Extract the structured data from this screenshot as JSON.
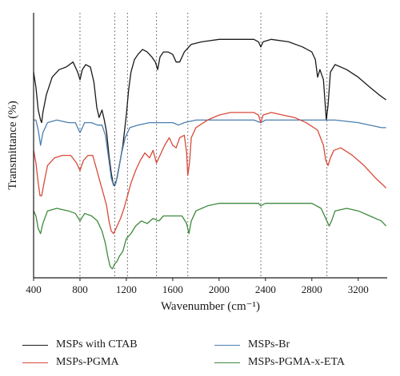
{
  "chart_data": {
    "type": "line",
    "title": "",
    "xlabel": "Wavenumber (cm⁻¹)",
    "ylabel": "Transmittance (%)",
    "xlim": [
      400,
      3450
    ],
    "xticks": [
      400,
      800,
      1200,
      1600,
      2000,
      2400,
      2800,
      3200
    ],
    "xtick_labels": [
      "400",
      "800",
      "1200",
      "1600",
      "2000",
      "2400",
      "2800",
      "3200"
    ],
    "reference_lines": [
      800,
      1100,
      1210,
      1460,
      1730,
      2360,
      2930
    ],
    "ylim": [
      0,
      100
    ],
    "y_ticks_shown": false,
    "legend_position": "bottom",
    "series": [
      {
        "name": "MSPs with CTAB",
        "color": "#1a1a1a",
        "points": [
          [
            400,
            79
          ],
          [
            420,
            73
          ],
          [
            440,
            64
          ],
          [
            460,
            60
          ],
          [
            470,
            59
          ],
          [
            480,
            63
          ],
          [
            510,
            70
          ],
          [
            560,
            77
          ],
          [
            620,
            80
          ],
          [
            680,
            81
          ],
          [
            740,
            83
          ],
          [
            780,
            79
          ],
          [
            800,
            76
          ],
          [
            820,
            80
          ],
          [
            850,
            82
          ],
          [
            890,
            81
          ],
          [
            920,
            75
          ],
          [
            945,
            65
          ],
          [
            965,
            61
          ],
          [
            990,
            64
          ],
          [
            1010,
            60
          ],
          [
            1030,
            55
          ],
          [
            1050,
            46
          ],
          [
            1070,
            39
          ],
          [
            1085,
            35
          ],
          [
            1100,
            34
          ],
          [
            1120,
            37
          ],
          [
            1140,
            42
          ],
          [
            1170,
            50
          ],
          [
            1200,
            62
          ],
          [
            1220,
            72
          ],
          [
            1240,
            79
          ],
          [
            1270,
            84
          ],
          [
            1300,
            86
          ],
          [
            1340,
            88
          ],
          [
            1380,
            87
          ],
          [
            1420,
            85
          ],
          [
            1450,
            83
          ],
          [
            1470,
            80
          ],
          [
            1490,
            85
          ],
          [
            1520,
            87
          ],
          [
            1560,
            87
          ],
          [
            1600,
            86
          ],
          [
            1630,
            83
          ],
          [
            1660,
            83
          ],
          [
            1700,
            87
          ],
          [
            1760,
            90
          ],
          [
            1850,
            91
          ],
          [
            2000,
            92
          ],
          [
            2150,
            92
          ],
          [
            2300,
            92
          ],
          [
            2340,
            91
          ],
          [
            2360,
            89
          ],
          [
            2380,
            91
          ],
          [
            2450,
            92
          ],
          [
            2600,
            91
          ],
          [
            2720,
            89
          ],
          [
            2800,
            87
          ],
          [
            2830,
            84
          ],
          [
            2850,
            77
          ],
          [
            2870,
            80
          ],
          [
            2900,
            76
          ],
          [
            2925,
            60
          ],
          [
            2940,
            66
          ],
          [
            2960,
            79
          ],
          [
            3000,
            82
          ],
          [
            3100,
            80
          ],
          [
            3200,
            77
          ],
          [
            3300,
            73
          ],
          [
            3380,
            70
          ],
          [
            3440,
            68
          ]
        ]
      },
      {
        "name": "MSPs-Br",
        "color": "#4a7fb0",
        "points": [
          [
            400,
            60
          ],
          [
            420,
            60
          ],
          [
            440,
            56
          ],
          [
            460,
            50
          ],
          [
            480,
            55
          ],
          [
            520,
            59
          ],
          [
            600,
            60
          ],
          [
            700,
            59
          ],
          [
            760,
            59
          ],
          [
            800,
            55
          ],
          [
            840,
            59
          ],
          [
            900,
            59
          ],
          [
            950,
            58
          ],
          [
            990,
            58
          ],
          [
            1020,
            54
          ],
          [
            1050,
            44
          ],
          [
            1070,
            37
          ],
          [
            1090,
            34
          ],
          [
            1110,
            35
          ],
          [
            1130,
            40
          ],
          [
            1160,
            47
          ],
          [
            1190,
            53
          ],
          [
            1230,
            57
          ],
          [
            1300,
            58
          ],
          [
            1400,
            59
          ],
          [
            1500,
            59
          ],
          [
            1600,
            59
          ],
          [
            1650,
            58
          ],
          [
            1700,
            59
          ],
          [
            1800,
            60
          ],
          [
            2000,
            60
          ],
          [
            2300,
            60
          ],
          [
            2360,
            59
          ],
          [
            2400,
            60
          ],
          [
            2600,
            60
          ],
          [
            2800,
            60
          ],
          [
            2900,
            60
          ],
          [
            3000,
            60
          ],
          [
            3200,
            59
          ],
          [
            3300,
            58
          ],
          [
            3400,
            57
          ],
          [
            3440,
            57
          ]
        ]
      },
      {
        "name": "MSPs-PGMA",
        "color": "#d84b3a",
        "points": [
          [
            400,
            48
          ],
          [
            420,
            43
          ],
          [
            440,
            35
          ],
          [
            455,
            30
          ],
          [
            470,
            30
          ],
          [
            490,
            35
          ],
          [
            520,
            42
          ],
          [
            580,
            45
          ],
          [
            650,
            46
          ],
          [
            720,
            46
          ],
          [
            770,
            43
          ],
          [
            800,
            40
          ],
          [
            830,
            44
          ],
          [
            870,
            46
          ],
          [
            910,
            46
          ],
          [
            940,
            41
          ],
          [
            970,
            36
          ],
          [
            1000,
            31
          ],
          [
            1030,
            26
          ],
          [
            1050,
            20
          ],
          [
            1070,
            16
          ],
          [
            1090,
            15
          ],
          [
            1110,
            17
          ],
          [
            1130,
            19
          ],
          [
            1150,
            21
          ],
          [
            1180,
            25
          ],
          [
            1210,
            30
          ],
          [
            1240,
            35
          ],
          [
            1280,
            40
          ],
          [
            1320,
            44
          ],
          [
            1360,
            47
          ],
          [
            1400,
            45
          ],
          [
            1430,
            48
          ],
          [
            1460,
            43
          ],
          [
            1490,
            46
          ],
          [
            1530,
            50
          ],
          [
            1570,
            53
          ],
          [
            1600,
            50
          ],
          [
            1630,
            49
          ],
          [
            1660,
            53
          ],
          [
            1700,
            54
          ],
          [
            1720,
            47
          ],
          [
            1730,
            38
          ],
          [
            1745,
            43
          ],
          [
            1760,
            53
          ],
          [
            1800,
            57
          ],
          [
            1900,
            60
          ],
          [
            2000,
            62
          ],
          [
            2100,
            63
          ],
          [
            2200,
            63
          ],
          [
            2300,
            63
          ],
          [
            2340,
            62
          ],
          [
            2360,
            59
          ],
          [
            2380,
            62
          ],
          [
            2450,
            63
          ],
          [
            2550,
            62
          ],
          [
            2650,
            61
          ],
          [
            2750,
            59
          ],
          [
            2850,
            56
          ],
          [
            2900,
            50
          ],
          [
            2920,
            44
          ],
          [
            2940,
            42
          ],
          [
            2960,
            45
          ],
          [
            2990,
            48
          ],
          [
            3050,
            49
          ],
          [
            3150,
            46
          ],
          [
            3250,
            42
          ],
          [
            3350,
            37
          ],
          [
            3420,
            34
          ],
          [
            3440,
            33
          ]
        ]
      },
      {
        "name": "MSPs-PGMA-x-ETA",
        "color": "#3d8a3d",
        "points": [
          [
            400,
            24
          ],
          [
            420,
            22
          ],
          [
            440,
            17
          ],
          [
            460,
            15
          ],
          [
            480,
            19
          ],
          [
            520,
            24
          ],
          [
            600,
            25
          ],
          [
            700,
            24
          ],
          [
            760,
            23
          ],
          [
            800,
            20
          ],
          [
            840,
            23
          ],
          [
            900,
            22
          ],
          [
            950,
            20
          ],
          [
            990,
            16
          ],
          [
            1020,
            11
          ],
          [
            1040,
            6
          ],
          [
            1060,
            2
          ],
          [
            1080,
            1
          ],
          [
            1100,
            3
          ],
          [
            1120,
            4
          ],
          [
            1140,
            6
          ],
          [
            1170,
            8
          ],
          [
            1200,
            13
          ],
          [
            1240,
            15
          ],
          [
            1280,
            18
          ],
          [
            1330,
            20
          ],
          [
            1380,
            19
          ],
          [
            1430,
            21
          ],
          [
            1480,
            20
          ],
          [
            1520,
            22
          ],
          [
            1580,
            22
          ],
          [
            1630,
            22
          ],
          [
            1680,
            22
          ],
          [
            1720,
            19
          ],
          [
            1740,
            15
          ],
          [
            1760,
            20
          ],
          [
            1800,
            24
          ],
          [
            1900,
            26
          ],
          [
            2000,
            27
          ],
          [
            2200,
            27
          ],
          [
            2340,
            27
          ],
          [
            2360,
            26
          ],
          [
            2400,
            27
          ],
          [
            2600,
            27
          ],
          [
            2800,
            27
          ],
          [
            2880,
            25
          ],
          [
            2930,
            20
          ],
          [
            2950,
            18
          ],
          [
            2970,
            20
          ],
          [
            3000,
            24
          ],
          [
            3100,
            25
          ],
          [
            3200,
            24
          ],
          [
            3300,
            22
          ],
          [
            3400,
            20
          ],
          [
            3440,
            18
          ]
        ]
      }
    ]
  }
}
